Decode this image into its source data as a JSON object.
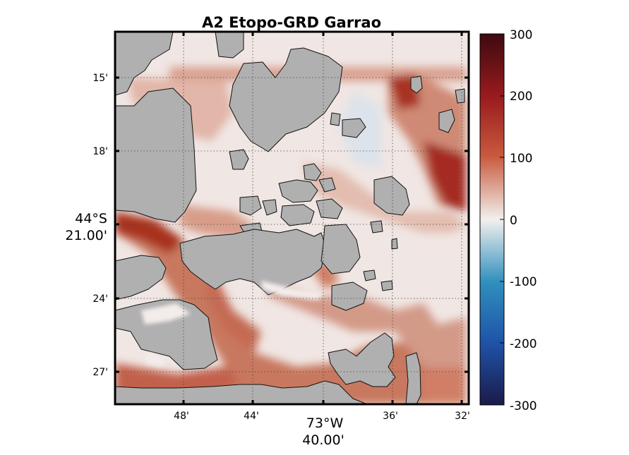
{
  "figure": {
    "title": "A2 Etopo-GRD Garrao"
  },
  "map": {
    "x_ticks": [
      "48'",
      "44'",
      "40'",
      "36'",
      "32'"
    ],
    "x_center_label": [
      "73°W",
      "40.00'"
    ],
    "y_ticks": [
      "15'",
      "18'",
      "24'",
      "27'"
    ],
    "y_center_label": [
      "44°S",
      "21.00'"
    ],
    "land_color": "#b0b0b0",
    "grid": "dotted"
  },
  "colorbar": {
    "ticks": [
      "300",
      "200",
      "100",
      "0",
      "-100",
      "-200",
      "-300"
    ],
    "range": [
      -300,
      300
    ],
    "colormap": "diverging blue-white-red",
    "colors": [
      "#1b1a4a",
      "#1f54a8",
      "#2f8fbd",
      "#f2f0ee",
      "#c85a3e",
      "#9a1b1e",
      "#3d0a10"
    ]
  }
}
